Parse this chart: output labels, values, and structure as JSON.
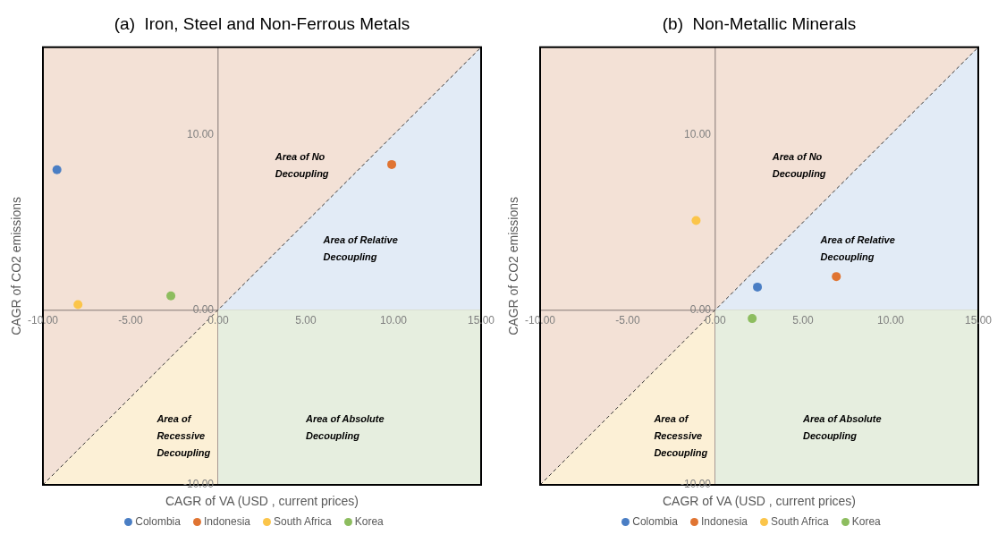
{
  "chart_data": [
    {
      "type": "scatter",
      "title": "(a)  Iron, Steel and Non-Ferrous Metals",
      "xlabel": "CAGR of VA (USD , current prices)",
      "ylabel": "CAGR of CO2 emissions",
      "legend": "bottom",
      "marker": "circle",
      "xlim": [
        -10,
        15
      ],
      "ylim": [
        -10,
        15
      ],
      "xticks": [
        {
          "value": -10,
          "label": "-10.00"
        },
        {
          "value": -5,
          "label": "-5.00"
        },
        {
          "value": 0,
          "label": "0.00"
        },
        {
          "value": 5,
          "label": "5.00"
        },
        {
          "value": 10,
          "label": "10.00"
        },
        {
          "value": 15,
          "label": "15.00"
        }
      ],
      "yticks": [
        {
          "value": -10,
          "label": "-10.00"
        },
        {
          "value": 0,
          "label": "0.00"
        },
        {
          "value": 10,
          "label": "10.00"
        }
      ],
      "series": [
        {
          "type": "area",
          "color": "#e2ebf6",
          "marker": "none",
          "x": [
            0,
            15
          ],
          "values": [
            0,
            15
          ]
        },
        {
          "type": "area",
          "color": "#e6eedf",
          "marker": "none",
          "x": [
            0,
            15
          ],
          "values": [
            -10,
            -10
          ]
        },
        {
          "name": "Colombia",
          "color": "#4a7ec4",
          "x": [
            -9.2
          ],
          "values": [
            8.0
          ]
        },
        {
          "name": "Indonesia",
          "color": "#e07432",
          "x": [
            9.9
          ],
          "values": [
            8.3
          ]
        },
        {
          "name": "South Africa",
          "color": "#fbc54a",
          "x": [
            -8.0
          ],
          "values": [
            0.3
          ]
        },
        {
          "name": "Korea",
          "color": "#8dbd5f",
          "x": [
            -2.7
          ],
          "values": [
            0.8
          ]
        },
        {
          "type": "line",
          "color": "#333333",
          "line_style": "dashed",
          "marker": "none",
          "x": [
            -10,
            15
          ],
          "values": [
            -10,
            15
          ]
        }
      ],
      "annotations": [
        "Area of No\nDecoupling",
        "Area of Relative\nDecoupling",
        "Area of\nRecessive\nDecoupling",
        "Area of Absolute\nDecoupling"
      ]
    },
    {
      "type": "scatter",
      "title": "(b)  Non-Metallic Minerals",
      "xlabel": "CAGR of VA (USD , current prices)",
      "ylabel": "CAGR of CO2 emissions",
      "legend": "bottom",
      "marker": "circle",
      "xlim": [
        -10,
        15
      ],
      "ylim": [
        -10,
        15
      ],
      "xticks": [
        {
          "value": -10,
          "label": "-10.00"
        },
        {
          "value": -5,
          "label": "-5.00"
        },
        {
          "value": 0,
          "label": "0.00"
        },
        {
          "value": 5,
          "label": "5.00"
        },
        {
          "value": 10,
          "label": "10.00"
        },
        {
          "value": 15,
          "label": "15.00"
        }
      ],
      "yticks": [
        {
          "value": -10,
          "label": "-10.00"
        },
        {
          "value": 0,
          "label": "0.00"
        },
        {
          "value": 10,
          "label": "10.00"
        }
      ],
      "series": [
        {
          "type": "area",
          "color": "#e2ebf6",
          "marker": "none",
          "x": [
            0,
            15
          ],
          "values": [
            0,
            15
          ]
        },
        {
          "type": "area",
          "color": "#e6eedf",
          "marker": "none",
          "x": [
            0,
            15
          ],
          "values": [
            -10,
            -10
          ]
        },
        {
          "name": "Colombia",
          "color": "#4a7ec4",
          "x": [
            2.4
          ],
          "values": [
            1.3
          ]
        },
        {
          "name": "Indonesia",
          "color": "#e07432",
          "x": [
            6.9
          ],
          "values": [
            1.9
          ]
        },
        {
          "name": "South Africa",
          "color": "#fbc54a",
          "x": [
            -1.1
          ],
          "values": [
            5.1
          ]
        },
        {
          "name": "Korea",
          "color": "#8dbd5f",
          "x": [
            2.1
          ],
          "values": [
            -0.5
          ]
        },
        {
          "type": "line",
          "color": "#333333",
          "line_style": "dashed",
          "marker": "none",
          "x": [
            -10,
            15
          ],
          "values": [
            -10,
            15
          ]
        }
      ],
      "annotations": [
        "Area of No\nDecoupling",
        "Area of Relative\nDecoupling",
        "Area of\nRecessive\nDecoupling",
        "Area of Absolute\nDecoupling"
      ]
    }
  ]
}
